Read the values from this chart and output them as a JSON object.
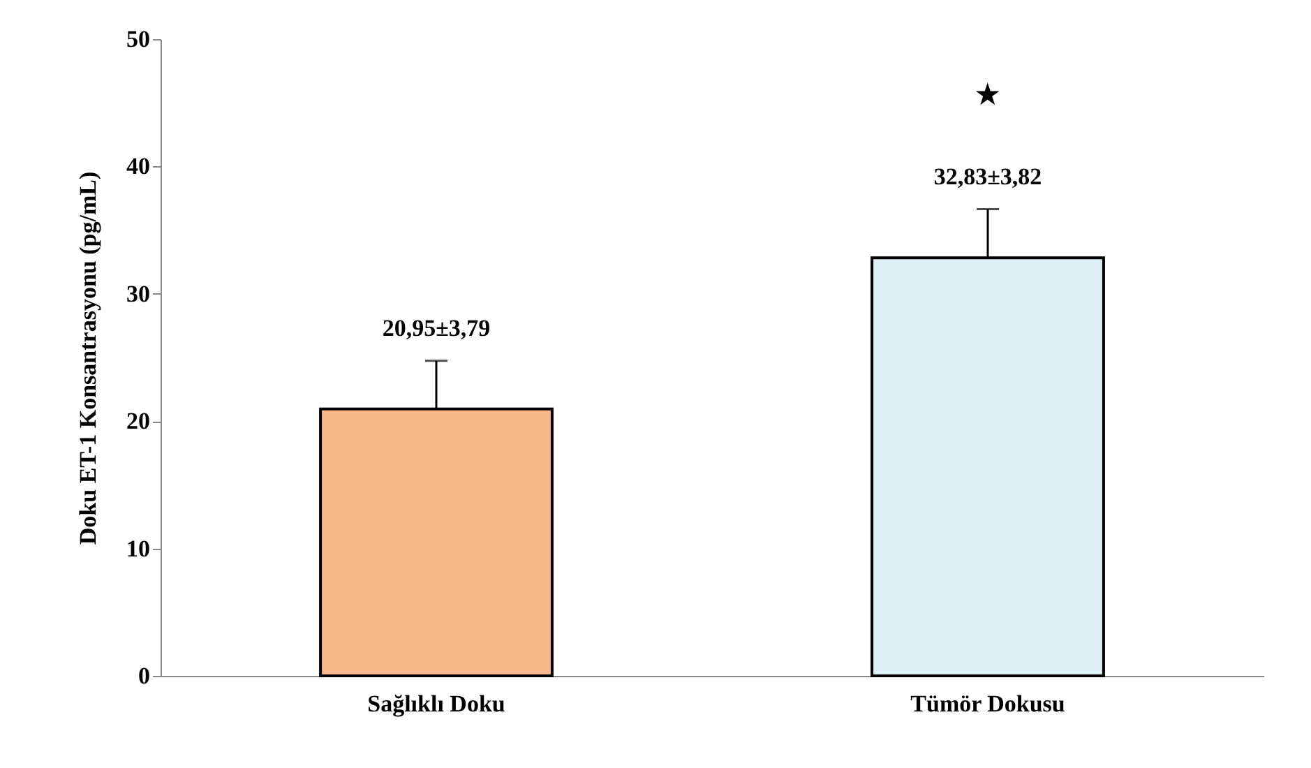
{
  "chart_data": {
    "type": "bar",
    "ylabel": "Doku ET-1 Konsantrasyonu (pg/mL)",
    "categories": [
      "Sağlıklı Doku",
      "Tümör Dokusu"
    ],
    "values": [
      20.95,
      32.83
    ],
    "colors": [
      "#f8b88b",
      "#dcf0f6"
    ],
    "errors": [
      [
        20.95,
        24.74
      ],
      [
        32.83,
        36.65
      ]
    ],
    "value_labels": [
      "20,95±3,79",
      "32,83±3,82"
    ],
    "annotations": [
      "★"
    ],
    "ylim": [
      0,
      50
    ],
    "yticks": [
      0,
      10,
      20,
      30,
      40,
      50
    ],
    "grid": false
  }
}
